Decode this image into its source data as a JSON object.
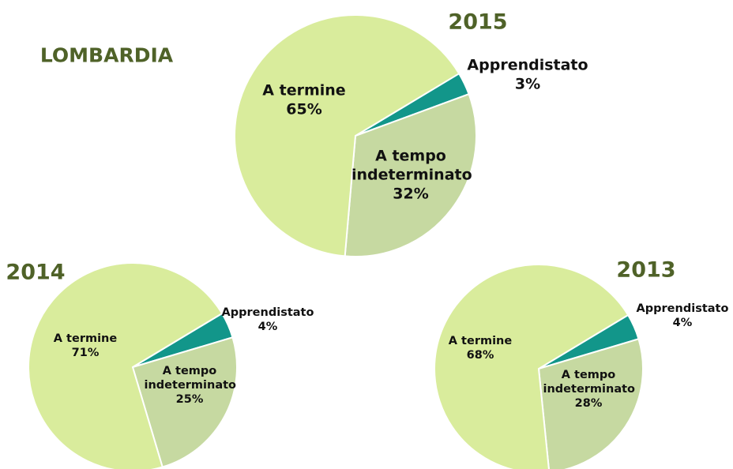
{
  "heading": "LOMBARDIA",
  "chart_data": [
    {
      "type": "pie",
      "title": "2015",
      "categories": [
        "Apprendistato",
        "A tempo indeterminato",
        "A termine"
      ],
      "values": [
        3,
        32,
        65
      ],
      "value_labels": [
        "3%",
        "32%",
        "65%"
      ],
      "colors": [
        "#12968a",
        "#c6d9a1",
        "#d9ec9c"
      ]
    },
    {
      "type": "pie",
      "title": "2014",
      "categories": [
        "Apprendistato",
        "A tempo indeterminato",
        "A termine"
      ],
      "values": [
        4,
        25,
        71
      ],
      "value_labels": [
        "4%",
        "25%",
        "71%"
      ],
      "colors": [
        "#12968a",
        "#c6d9a1",
        "#d9ec9c"
      ]
    },
    {
      "type": "pie",
      "title": "2013",
      "categories": [
        "Apprendistato",
        "A tempo indeterminato",
        "A termine"
      ],
      "values": [
        4,
        28,
        68
      ],
      "value_labels": [
        "4%",
        "28%",
        "68%"
      ],
      "colors": [
        "#12968a",
        "#c6d9a1",
        "#d9ec9c"
      ]
    }
  ]
}
